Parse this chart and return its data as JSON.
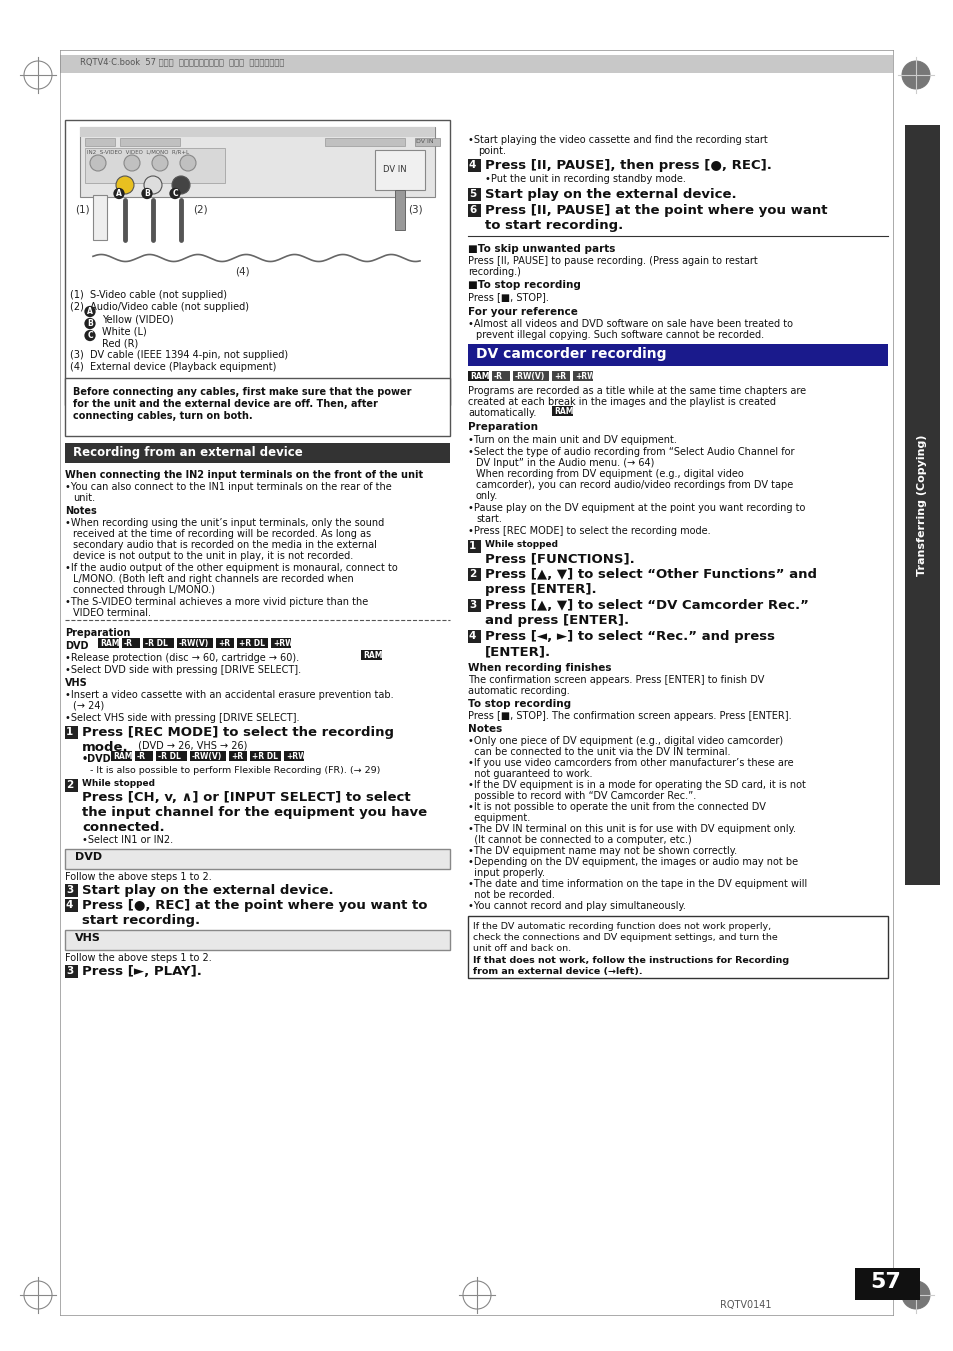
{
  "page_bg": "#ffffff",
  "header_text": "RQTV4·C.book  57 ページ  ２００６年２月６日  月曜日  午後３時２９分",
  "fig_caption_1": "(1)  S-Video cable (not supplied)",
  "fig_caption_2": "(2)  Audio/Video cable (not supplied)",
  "fig_caption_A_text": "Yellow (VIDEO)",
  "fig_caption_B_text": "White (L)",
  "fig_caption_C_text": "Red (R)",
  "fig_caption_3": "(3)  DV cable (IEEE 1394 4-pin, not supplied)",
  "fig_caption_4": "(4)  External device (Playback equipment)",
  "warning_line1": "Before connecting any cables, first make sure that the power",
  "warning_line2": "for the unit and the external device are off. Then, after",
  "warning_line3": "connecting cables, turn on both.",
  "sec1_title": "Recording from an external device",
  "dv_sec_title": "DV camcorder recording",
  "page_number": "57",
  "page_code": "RQTV0141",
  "sidebar_text": "Transferring (Copying)",
  "prep_dvd_tags": [
    "RAM",
    "-R",
    "-R DL",
    "-RW(V)",
    "+R",
    "+R DL",
    "+RW"
  ],
  "step1_tags": [
    "RAM",
    "-R",
    "-R DL",
    "-RW(V)",
    "+R",
    "+R DL",
    "+RW"
  ],
  "dv_tags_row": [
    "RAM",
    "-R",
    "-RW(V)",
    "+R",
    "+RW"
  ],
  "dv_notes": [
    "•Only one piece of DV equipment (e.g., digital video camcorder)",
    "  can be connected to the unit via the DV IN terminal.",
    "•If you use video camcorders from other manufacturer’s these are",
    "  not guaranteed to work.",
    "•If the DV equipment is in a mode for operating the SD card, it is not",
    "  possible to record with “DV Camcorder Rec.”.",
    "•It is not possible to operate the unit from the connected DV",
    "  equipment.",
    "•The DV IN terminal on this unit is for use with DV equipment only.",
    "  (It cannot be connected to a computer, etc.)",
    "•The DV equipment name may not be shown correctly.",
    "•Depending on the DV equipment, the images or audio may not be",
    "  input properly.",
    "•The date and time information on the tape in the DV equipment will",
    "  not be recorded.",
    "•You cannot record and play simultaneously."
  ]
}
